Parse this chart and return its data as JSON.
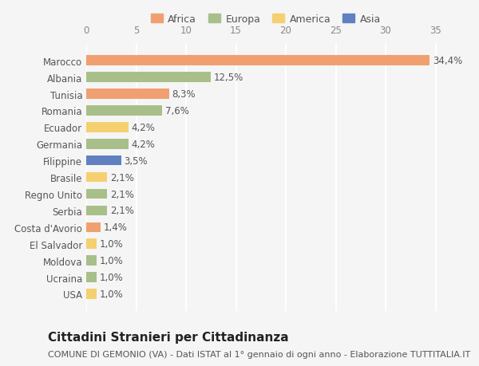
{
  "countries": [
    "Marocco",
    "Albania",
    "Tunisia",
    "Romania",
    "Ecuador",
    "Germania",
    "Filippine",
    "Brasile",
    "Regno Unito",
    "Serbia",
    "Costa d'Avorio",
    "El Salvador",
    "Moldova",
    "Ucraina",
    "USA"
  ],
  "values": [
    34.4,
    12.5,
    8.3,
    7.6,
    4.2,
    4.2,
    3.5,
    2.1,
    2.1,
    2.1,
    1.4,
    1.0,
    1.0,
    1.0,
    1.0
  ],
  "labels": [
    "34,4%",
    "12,5%",
    "8,3%",
    "7,6%",
    "4,2%",
    "4,2%",
    "3,5%",
    "2,1%",
    "2,1%",
    "2,1%",
    "1,4%",
    "1,0%",
    "1,0%",
    "1,0%",
    "1,0%"
  ],
  "continents": [
    "Africa",
    "Europa",
    "Africa",
    "Europa",
    "America",
    "Europa",
    "Asia",
    "America",
    "Europa",
    "Europa",
    "Africa",
    "America",
    "Europa",
    "Europa",
    "America"
  ],
  "continent_colors": {
    "Africa": "#F0A070",
    "Europa": "#A8BF8A",
    "America": "#F5D070",
    "Asia": "#6080C0"
  },
  "legend_order": [
    "Africa",
    "Europa",
    "America",
    "Asia"
  ],
  "legend_colors": {
    "Africa": "#F0A070",
    "Europa": "#A8BF8A",
    "America": "#F5D070",
    "Asia": "#6080C0"
  },
  "title": "Cittadini Stranieri per Cittadinanza",
  "subtitle": "COMUNE DI GEMONIO (VA) - Dati ISTAT al 1° gennaio di ogni anno - Elaborazione TUTTITALIA.IT",
  "xlim": [
    0,
    36
  ],
  "xticks": [
    0,
    5,
    10,
    15,
    20,
    25,
    30,
    35
  ],
  "background_color": "#f5f5f5",
  "bar_height": 0.6,
  "grid_color": "#ffffff",
  "label_fontsize": 8.5,
  "tick_fontsize": 8.5,
  "title_fontsize": 11,
  "subtitle_fontsize": 8
}
